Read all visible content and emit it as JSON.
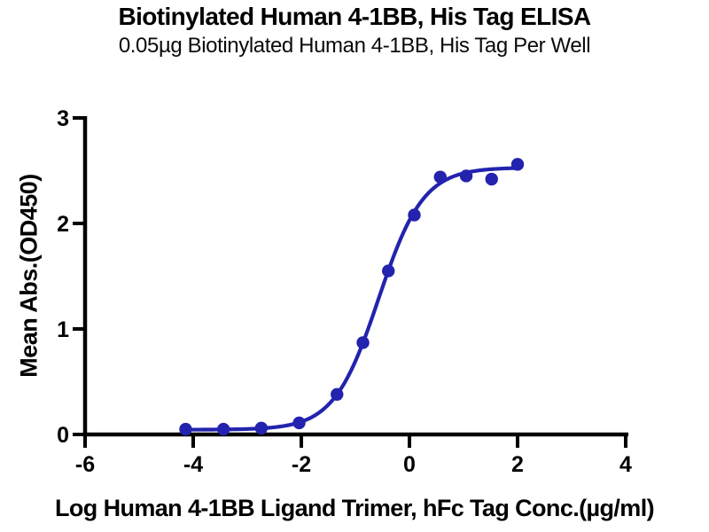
{
  "chart_data": {
    "type": "scatter",
    "title": "Biotinylated Human 4-1BB, His Tag ELISA",
    "subtitle": "0.05µg Biotinylated Human 4-1BB, His Tag Per Well",
    "xlabel": "Log Human 4-1BB Ligand Trimer, hFc Tag Conc.(µg/ml)",
    "ylabel": "Mean Abs.(OD450)",
    "xlim": [
      -6,
      4
    ],
    "ylim": [
      0,
      3
    ],
    "x_ticks": [
      -6,
      -4,
      -2,
      0,
      2,
      4
    ],
    "y_ticks": [
      0,
      1,
      2,
      3
    ],
    "grid": false,
    "legend": "none",
    "points": {
      "x": [
        -4.14,
        -3.44,
        -2.74,
        -2.04,
        -1.34,
        -0.86,
        -0.39,
        0.09,
        0.57,
        1.05,
        1.52,
        2.0
      ],
      "y": [
        0.05,
        0.05,
        0.06,
        0.11,
        0.38,
        0.87,
        1.55,
        2.08,
        2.44,
        2.45,
        2.42,
        2.56
      ]
    },
    "fit_curve": {
      "model": "4PL",
      "bottom": 0.045,
      "top": 2.53,
      "logEC50": -0.57,
      "hill": 1.05,
      "x_range": [
        -4.14,
        2.0
      ]
    },
    "colors": {
      "series": "#2323AE",
      "axis": "#000000",
      "text": "#000000",
      "background": "#ffffff"
    }
  }
}
